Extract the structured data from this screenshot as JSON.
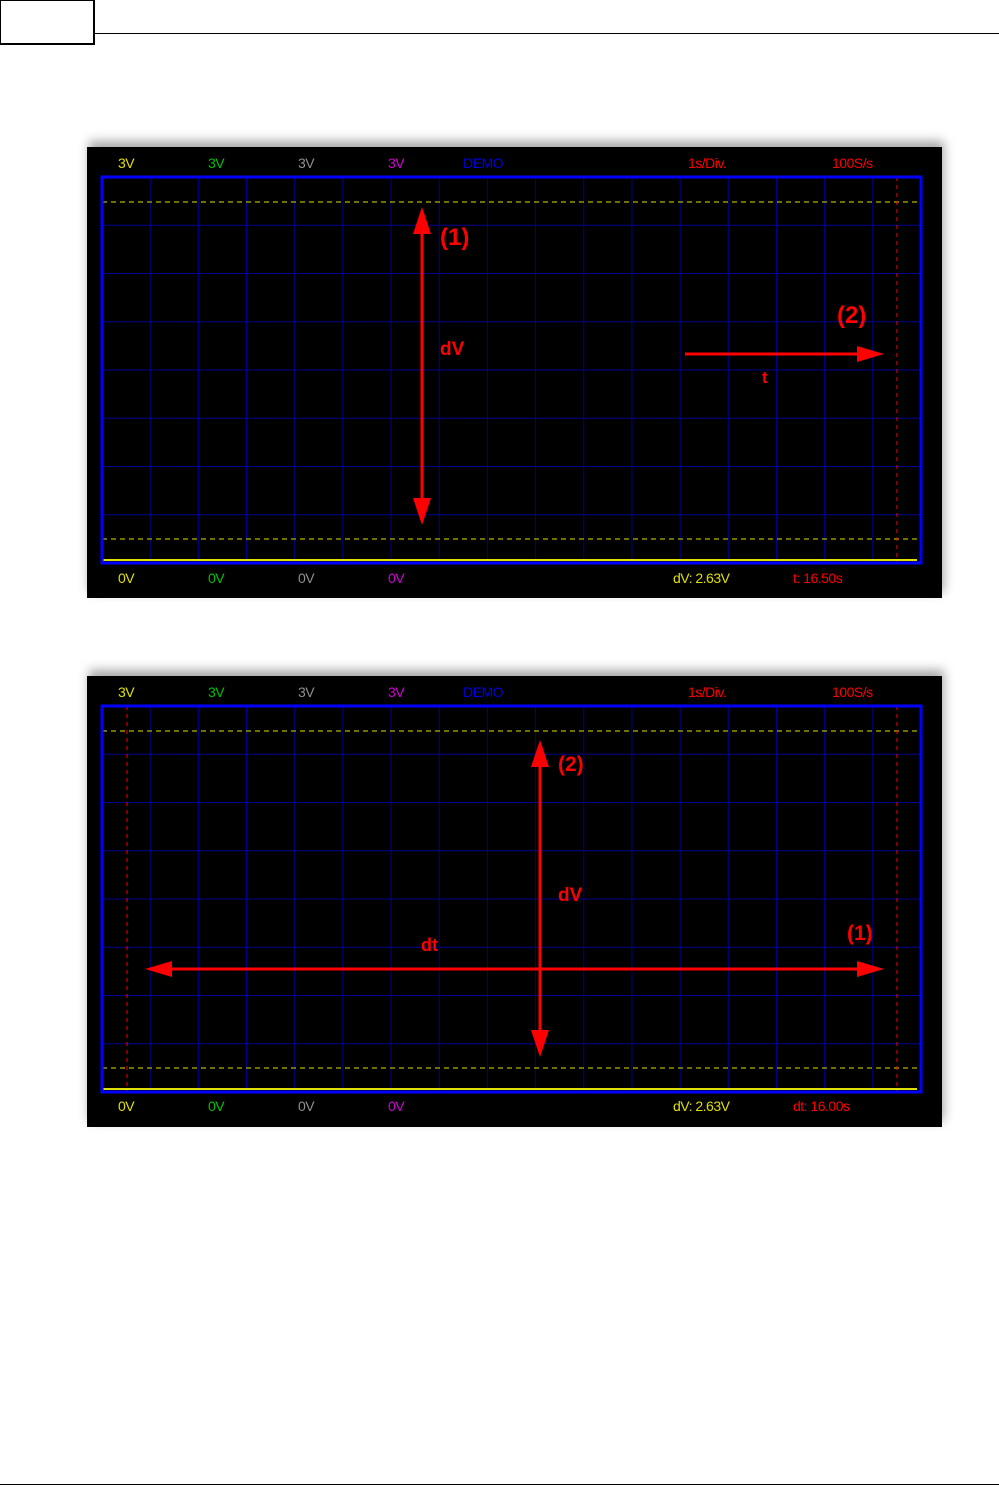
{
  "colors": {
    "ch1": "#e0e000",
    "ch2": "#00c000",
    "ch3": "#909090",
    "ch4": "#d000d0",
    "demo": "#0000e0",
    "red": "#ff0000",
    "grid": "#000090",
    "frame": "#0000ff",
    "cursor_v": "#e0e000"
  },
  "scopes": [
    {
      "top": {
        "ch1": "3V",
        "ch2": "3V",
        "ch3": "3V",
        "ch4": "3V",
        "mode": "DEMO",
        "timebase": "1s/Div.",
        "rate": "100S/s"
      },
      "bottom": {
        "ch1": "0V",
        "ch2": "0V",
        "ch3": "0V",
        "ch4": "0V",
        "dv": "dV: 2.63V",
        "time": "t: 16.50s"
      },
      "annotations": {
        "marker_vertical": "(1)",
        "label_vertical": "dV",
        "marker_horizontal": "(2)",
        "label_horizontal": "t"
      }
    },
    {
      "top": {
        "ch1": "3V",
        "ch2": "3V",
        "ch3": "3V",
        "ch4": "3V",
        "mode": "DEMO",
        "timebase": "1s/Div.",
        "rate": "100S/s"
      },
      "bottom": {
        "ch1": "0V",
        "ch2": "0V",
        "ch3": "0V",
        "ch4": "0V",
        "dv": "dV: 2.63V",
        "time": "dt: 16.00s"
      },
      "annotations": {
        "marker_vertical": "(2)",
        "label_vertical": "dV",
        "marker_horizontal": "(1)",
        "label_horizontal": "dt"
      }
    }
  ]
}
